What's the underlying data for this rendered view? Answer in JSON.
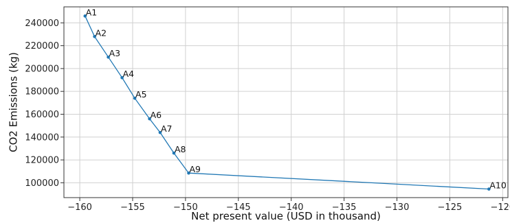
{
  "chart_data": {
    "type": "line",
    "title": "",
    "xlabel": "Net present value (USD in thousand)",
    "ylabel": "CO2 Emissions (kg)",
    "xlim": [
      -161.5,
      -119.5
    ],
    "ylim": [
      87000,
      254000
    ],
    "xticks": [
      -160,
      -155,
      -150,
      -145,
      -140,
      -135,
      -130,
      -125,
      -120
    ],
    "xtick_labels": [
      "−160",
      "−155",
      "−150",
      "−145",
      "−140",
      "−135",
      "−130",
      "−125",
      "−120"
    ],
    "yticks": [
      100000,
      120000,
      140000,
      160000,
      180000,
      200000,
      220000,
      240000
    ],
    "ytick_labels": [
      "100000",
      "120000",
      "140000",
      "160000",
      "180000",
      "200000",
      "220000",
      "240000"
    ],
    "grid": true,
    "line_color": "#1f77b4",
    "marker_color": "#1f77b4",
    "points": [
      {
        "label": "A1",
        "x": -159.5,
        "y": 246000
      },
      {
        "label": "A2",
        "x": -158.6,
        "y": 228000
      },
      {
        "label": "A3",
        "x": -157.3,
        "y": 210000
      },
      {
        "label": "A4",
        "x": -156.0,
        "y": 192000
      },
      {
        "label": "A5",
        "x": -154.8,
        "y": 174000
      },
      {
        "label": "A6",
        "x": -153.4,
        "y": 156000
      },
      {
        "label": "A7",
        "x": -152.4,
        "y": 144000
      },
      {
        "label": "A8",
        "x": -151.1,
        "y": 126000
      },
      {
        "label": "A9",
        "x": -149.7,
        "y": 108500
      },
      {
        "label": "A10",
        "x": -121.3,
        "y": 94500
      }
    ]
  }
}
